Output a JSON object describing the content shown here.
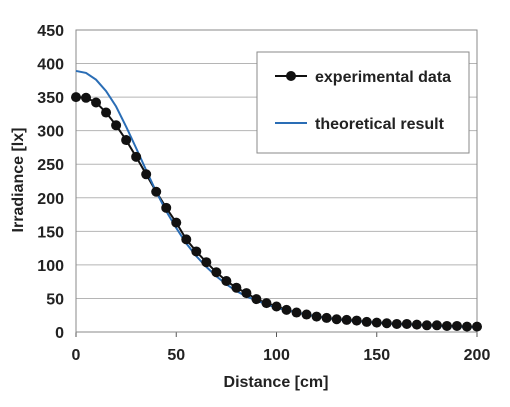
{
  "chart_data": {
    "type": "line",
    "title": "",
    "xlabel": "Distance [cm]",
    "ylabel": "Irradiance [lx]",
    "xlim": [
      0,
      200
    ],
    "ylim": [
      0,
      450
    ],
    "x_ticks": [
      0,
      50,
      100,
      150,
      200
    ],
    "y_ticks": [
      0,
      50,
      100,
      150,
      200,
      250,
      300,
      350,
      400,
      450
    ],
    "grid": "horizontal",
    "legend_position": "top-right",
    "series": [
      {
        "name": "experimental data",
        "style": "line-with-markers",
        "color": "#111111",
        "x": [
          0,
          5,
          10,
          15,
          20,
          25,
          30,
          35,
          40,
          45,
          50,
          55,
          60,
          65,
          70,
          75,
          80,
          85,
          90,
          95,
          100,
          105,
          110,
          115,
          120,
          125,
          130,
          135,
          140,
          145,
          150,
          155,
          160,
          165,
          170,
          175,
          180,
          185,
          190,
          195,
          200
        ],
        "y": [
          350,
          349,
          342,
          327,
          308,
          286,
          261,
          235,
          209,
          185,
          163,
          138,
          120,
          104,
          89,
          76,
          66,
          58,
          49,
          43,
          38,
          33,
          29,
          26,
          23,
          21,
          19,
          18,
          17,
          15,
          14,
          13,
          12,
          12,
          11,
          10,
          10,
          9,
          9,
          8,
          8
        ]
      },
      {
        "name": "theoretical result",
        "style": "line",
        "color": "#2a6db5",
        "x": [
          0,
          5,
          10,
          15,
          20,
          25,
          30,
          35,
          40,
          45,
          50,
          55,
          60,
          65,
          70,
          75,
          80,
          85,
          90,
          95,
          100,
          110,
          120,
          130,
          140,
          150,
          160,
          170,
          180,
          190,
          200
        ],
        "y": [
          389,
          386,
          376,
          359,
          336,
          306,
          274,
          241,
          209,
          180,
          155,
          132,
          113,
          97,
          83,
          71,
          61,
          53,
          47,
          41,
          36,
          29,
          23,
          19,
          16,
          14,
          12,
          11,
          9,
          8,
          7
        ]
      }
    ]
  }
}
